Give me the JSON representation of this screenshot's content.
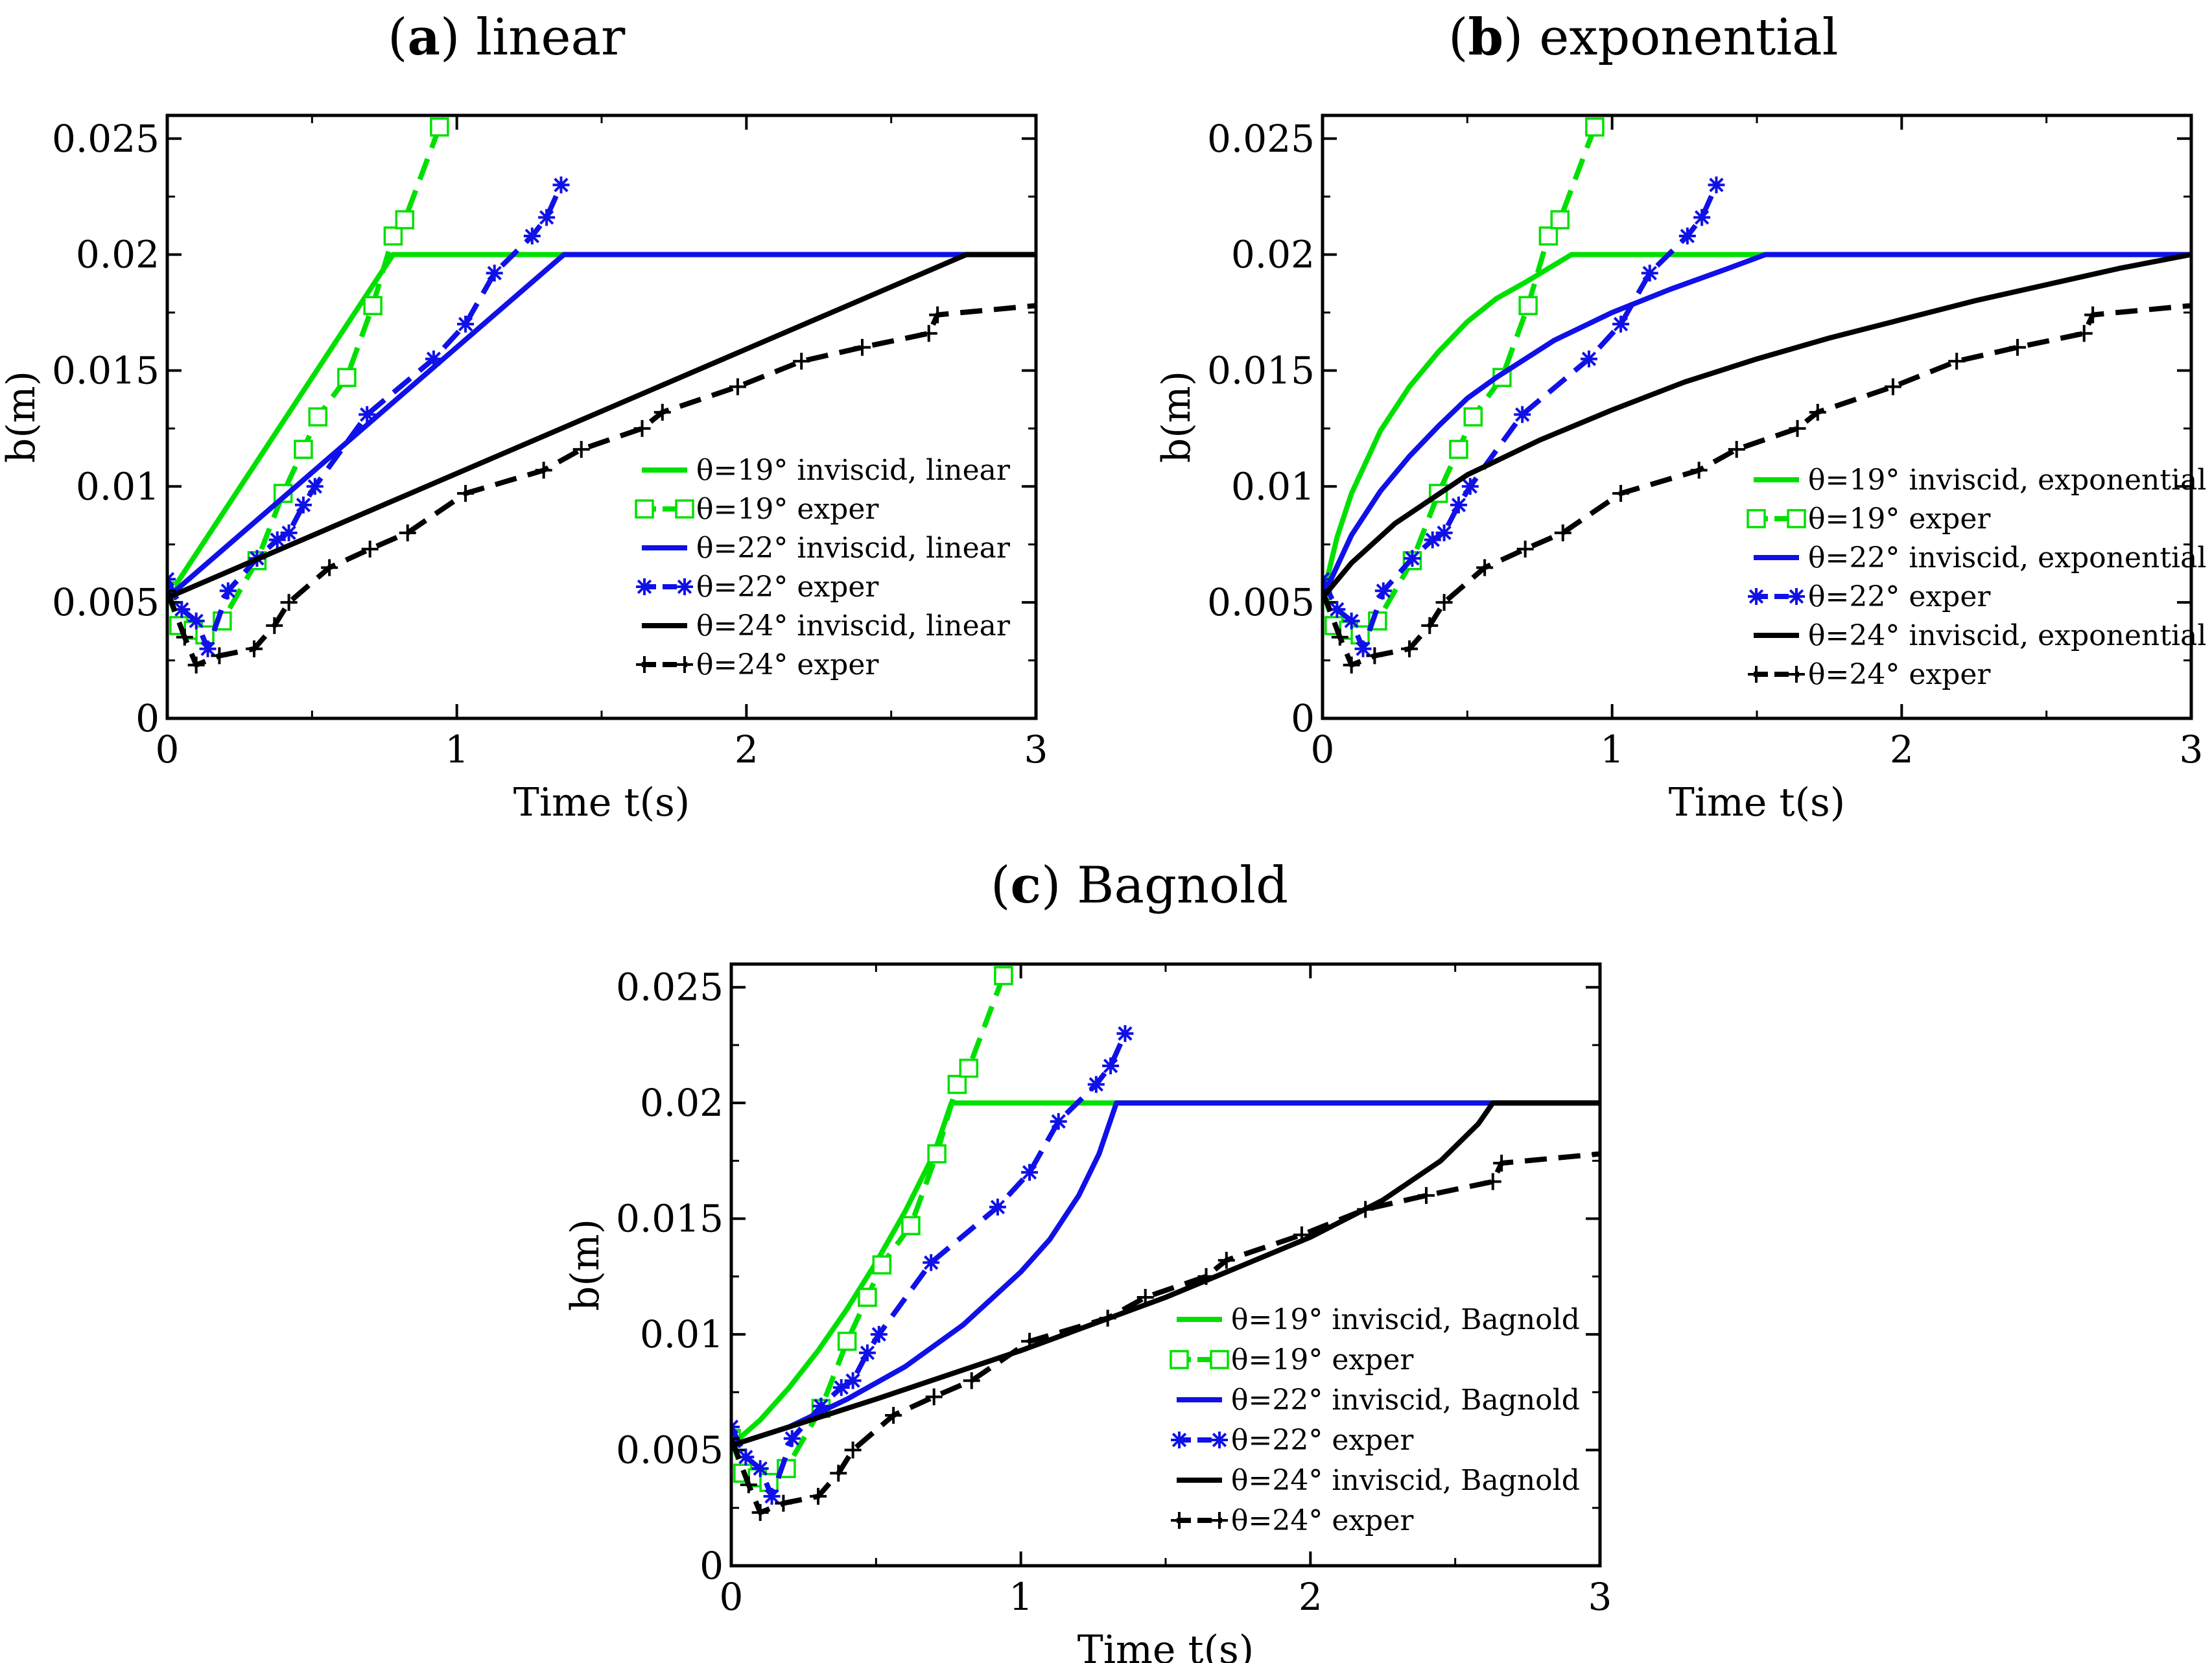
{
  "colors": {
    "green": "#00e000",
    "blue": "#1010e8",
    "black": "#000000"
  },
  "chart_data": [
    {
      "type": "line",
      "panel_letter": "a",
      "panel_name": "linear",
      "xlabel": "Time t(s)",
      "ylabel": "b(m)",
      "xlim": [
        0,
        3
      ],
      "ylim": [
        0,
        0.026
      ],
      "xticks": [
        0,
        1,
        2,
        3
      ],
      "xtick_labels": [
        "0",
        "1",
        "2",
        "3"
      ],
      "yticks": [
        0,
        0.005,
        0.01,
        0.015,
        0.02,
        0.025
      ],
      "ytick_labels": [
        "0",
        "0.005",
        "0.01",
        "0.015",
        "0.02",
        "0.025"
      ],
      "legend_position": "lower-right",
      "series": [
        {
          "name": "θ=19° inviscid, linear",
          "color": "#00e000",
          "dash": "solid",
          "marker": "none",
          "x": [
            0,
            0.78,
            3
          ],
          "y": [
            0.0052,
            0.02,
            0.02
          ]
        },
        {
          "name": "θ=19° exper",
          "color": "#00e000",
          "dash": "dashed",
          "marker": "square",
          "x": [
            0,
            0.04,
            0.09,
            0.13,
            0.19,
            0.31,
            0.4,
            0.47,
            0.52,
            0.62,
            0.71,
            0.78,
            0.82,
            0.94
          ],
          "y": [
            0.0055,
            0.004,
            0.0038,
            0.0036,
            0.0042,
            0.0068,
            0.0097,
            0.0116,
            0.013,
            0.0147,
            0.0178,
            0.0208,
            0.0215,
            0.0255
          ]
        },
        {
          "name": "θ=22° inviscid, linear",
          "color": "#1010e8",
          "dash": "solid",
          "marker": "none",
          "x": [
            0,
            1.37,
            3
          ],
          "y": [
            0.0052,
            0.02,
            0.02
          ]
        },
        {
          "name": "θ=22° exper",
          "color": "#1010e8",
          "dash": "dashed",
          "marker": "asterisk",
          "x": [
            0,
            0.05,
            0.1,
            0.14,
            0.21,
            0.31,
            0.38,
            0.42,
            0.47,
            0.51,
            0.69,
            0.92,
            1.03,
            1.13,
            1.26,
            1.31,
            1.36
          ],
          "y": [
            0.006,
            0.0047,
            0.0042,
            0.003,
            0.0055,
            0.0069,
            0.0077,
            0.008,
            0.0092,
            0.01,
            0.0131,
            0.0155,
            0.017,
            0.0192,
            0.0208,
            0.0216,
            0.023
          ]
        },
        {
          "name": "θ=24° inviscid, linear",
          "color": "#000000",
          "dash": "solid",
          "marker": "none",
          "x": [
            0,
            2.76,
            3
          ],
          "y": [
            0.0052,
            0.02,
            0.02
          ]
        },
        {
          "name": "θ=24° exper",
          "color": "#000000",
          "dash": "dashed",
          "marker": "plus",
          "x": [
            0,
            0.06,
            0.1,
            0.18,
            0.3,
            0.37,
            0.42,
            0.56,
            0.7,
            0.83,
            1.03,
            1.3,
            1.43,
            1.64,
            1.71,
            1.97,
            2.19,
            2.4,
            2.63,
            2.66,
            3.0
          ],
          "y": [
            0.0055,
            0.0035,
            0.0023,
            0.0027,
            0.003,
            0.004,
            0.005,
            0.0065,
            0.0073,
            0.008,
            0.0097,
            0.0107,
            0.0116,
            0.0125,
            0.0132,
            0.0143,
            0.0154,
            0.016,
            0.0166,
            0.0174,
            0.0178
          ]
        }
      ]
    },
    {
      "type": "line",
      "panel_letter": "b",
      "panel_name": "exponential",
      "xlabel": "Time t(s)",
      "ylabel": "b(m)",
      "xlim": [
        0,
        3
      ],
      "ylim": [
        0,
        0.026
      ],
      "xticks": [
        0,
        1,
        2,
        3
      ],
      "xtick_labels": [
        "0",
        "1",
        "2",
        "3"
      ],
      "yticks": [
        0,
        0.005,
        0.01,
        0.015,
        0.02,
        0.025
      ],
      "ytick_labels": [
        "0",
        "0.005",
        "0.01",
        "0.015",
        "0.02",
        "0.025"
      ],
      "legend_position": "lower-right",
      "series": [
        {
          "name": "θ=19° inviscid, exponential",
          "color": "#00e000",
          "dash": "solid",
          "marker": "none",
          "x": [
            0,
            0.05,
            0.1,
            0.2,
            0.3,
            0.4,
            0.5,
            0.6,
            0.7,
            0.86,
            3
          ],
          "y": [
            0.0052,
            0.0078,
            0.0097,
            0.0124,
            0.0143,
            0.0158,
            0.0171,
            0.0181,
            0.0188,
            0.02,
            0.02
          ]
        },
        {
          "name": "θ=19° exper",
          "color": "#00e000",
          "dash": "dashed",
          "marker": "square",
          "x": [
            0,
            0.04,
            0.09,
            0.13,
            0.19,
            0.31,
            0.4,
            0.47,
            0.52,
            0.62,
            0.71,
            0.78,
            0.82,
            0.94
          ],
          "y": [
            0.0055,
            0.004,
            0.0038,
            0.0036,
            0.0042,
            0.0068,
            0.0097,
            0.0116,
            0.013,
            0.0147,
            0.0178,
            0.0208,
            0.0215,
            0.0255
          ]
        },
        {
          "name": "θ=22° inviscid, exponential",
          "color": "#1010e8",
          "dash": "solid",
          "marker": "none",
          "x": [
            0,
            0.1,
            0.2,
            0.3,
            0.4,
            0.5,
            0.6,
            0.8,
            1.0,
            1.2,
            1.4,
            1.53,
            3
          ],
          "y": [
            0.0052,
            0.0079,
            0.0098,
            0.0113,
            0.0126,
            0.0138,
            0.0147,
            0.0163,
            0.0175,
            0.0185,
            0.0194,
            0.02,
            0.02
          ]
        },
        {
          "name": "θ=22° exper",
          "color": "#1010e8",
          "dash": "dashed",
          "marker": "asterisk",
          "x": [
            0,
            0.05,
            0.1,
            0.14,
            0.21,
            0.31,
            0.38,
            0.42,
            0.47,
            0.51,
            0.69,
            0.92,
            1.03,
            1.13,
            1.26,
            1.31,
            1.36
          ],
          "y": [
            0.006,
            0.0047,
            0.0042,
            0.003,
            0.0055,
            0.0069,
            0.0077,
            0.008,
            0.0092,
            0.01,
            0.0131,
            0.0155,
            0.017,
            0.0192,
            0.0208,
            0.0216,
            0.023
          ]
        },
        {
          "name": "θ=24° inviscid, exponential",
          "color": "#000000",
          "dash": "solid",
          "marker": "none",
          "x": [
            0,
            0.1,
            0.25,
            0.5,
            0.75,
            1.0,
            1.25,
            1.5,
            1.75,
            2.0,
            2.25,
            2.5,
            2.75,
            3.0
          ],
          "y": [
            0.0052,
            0.0067,
            0.0084,
            0.0105,
            0.012,
            0.0133,
            0.0145,
            0.0155,
            0.0164,
            0.0172,
            0.018,
            0.0187,
            0.0194,
            0.02
          ]
        },
        {
          "name": "θ=24° exper",
          "color": "#000000",
          "dash": "dashed",
          "marker": "plus",
          "x": [
            0,
            0.06,
            0.1,
            0.18,
            0.3,
            0.37,
            0.42,
            0.56,
            0.7,
            0.83,
            1.03,
            1.3,
            1.43,
            1.64,
            1.71,
            1.97,
            2.19,
            2.4,
            2.63,
            2.66,
            3.0
          ],
          "y": [
            0.0055,
            0.0035,
            0.0023,
            0.0027,
            0.003,
            0.004,
            0.005,
            0.0065,
            0.0073,
            0.008,
            0.0097,
            0.0107,
            0.0116,
            0.0125,
            0.0132,
            0.0143,
            0.0154,
            0.016,
            0.0166,
            0.0174,
            0.0178
          ]
        }
      ]
    },
    {
      "type": "line",
      "panel_letter": "c",
      "panel_name": "Bagnold",
      "xlabel": "Time t(s)",
      "ylabel": "b(m)",
      "xlim": [
        0,
        3
      ],
      "ylim": [
        0,
        0.026
      ],
      "xticks": [
        0,
        1,
        2,
        3
      ],
      "xtick_labels": [
        "0",
        "1",
        "2",
        "3"
      ],
      "yticks": [
        0,
        0.005,
        0.01,
        0.015,
        0.02,
        0.025
      ],
      "ytick_labels": [
        "0",
        "0.005",
        "0.01",
        "0.015",
        "0.02",
        "0.025"
      ],
      "legend_position": "lower-right",
      "series": [
        {
          "name": "θ=19° inviscid, Bagnold",
          "color": "#00e000",
          "dash": "solid",
          "marker": "none",
          "x": [
            0,
            0.1,
            0.2,
            0.3,
            0.4,
            0.5,
            0.6,
            0.7,
            0.76,
            3
          ],
          "y": [
            0.0052,
            0.0063,
            0.0077,
            0.0093,
            0.0111,
            0.0131,
            0.0153,
            0.0178,
            0.02,
            0.02
          ]
        },
        {
          "name": "θ=19° exper",
          "color": "#00e000",
          "dash": "dashed",
          "marker": "square",
          "x": [
            0,
            0.04,
            0.09,
            0.13,
            0.19,
            0.31,
            0.4,
            0.47,
            0.52,
            0.62,
            0.71,
            0.78,
            0.82,
            0.94
          ],
          "y": [
            0.0055,
            0.004,
            0.0038,
            0.0036,
            0.0042,
            0.0068,
            0.0097,
            0.0116,
            0.013,
            0.0147,
            0.0178,
            0.0208,
            0.0215,
            0.0255
          ]
        },
        {
          "name": "θ=22° inviscid, Bagnold",
          "color": "#1010e8",
          "dash": "solid",
          "marker": "none",
          "x": [
            0,
            0.2,
            0.4,
            0.6,
            0.8,
            1.0,
            1.1,
            1.2,
            1.27,
            1.33,
            3
          ],
          "y": [
            0.0052,
            0.006,
            0.0072,
            0.0086,
            0.0104,
            0.0127,
            0.0141,
            0.016,
            0.0178,
            0.02,
            0.02
          ]
        },
        {
          "name": "θ=22° exper",
          "color": "#1010e8",
          "dash": "dashed",
          "marker": "asterisk",
          "x": [
            0,
            0.05,
            0.1,
            0.14,
            0.21,
            0.31,
            0.38,
            0.42,
            0.47,
            0.51,
            0.69,
            0.92,
            1.03,
            1.13,
            1.26,
            1.31,
            1.36
          ],
          "y": [
            0.006,
            0.0047,
            0.0042,
            0.003,
            0.0055,
            0.0069,
            0.0077,
            0.008,
            0.0092,
            0.01,
            0.0131,
            0.0155,
            0.017,
            0.0192,
            0.0208,
            0.0216,
            0.023
          ]
        },
        {
          "name": "θ=24° inviscid, Bagnold",
          "color": "#000000",
          "dash": "solid",
          "marker": "none",
          "x": [
            0,
            0.5,
            1.0,
            1.5,
            2.0,
            2.25,
            2.45,
            2.58,
            2.63,
            3
          ],
          "y": [
            0.0052,
            0.0072,
            0.0093,
            0.0116,
            0.0142,
            0.0158,
            0.0175,
            0.0191,
            0.02,
            0.02
          ]
        },
        {
          "name": "θ=24° exper",
          "color": "#000000",
          "dash": "dashed",
          "marker": "plus",
          "x": [
            0,
            0.06,
            0.1,
            0.18,
            0.3,
            0.37,
            0.42,
            0.56,
            0.7,
            0.83,
            1.03,
            1.3,
            1.43,
            1.64,
            1.71,
            1.97,
            2.19,
            2.4,
            2.63,
            2.66,
            3.0
          ],
          "y": [
            0.0055,
            0.0035,
            0.0023,
            0.0027,
            0.003,
            0.004,
            0.005,
            0.0065,
            0.0073,
            0.008,
            0.0097,
            0.0107,
            0.0116,
            0.0125,
            0.0132,
            0.0143,
            0.0154,
            0.016,
            0.0166,
            0.0174,
            0.0178
          ]
        }
      ]
    }
  ]
}
